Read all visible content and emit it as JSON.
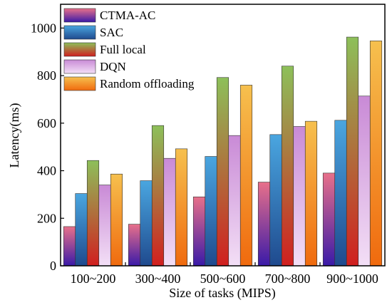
{
  "chart_data": {
    "type": "bar",
    "title": "",
    "xlabel": "Size of tasks (MIPS)",
    "ylabel": "Latency(ms)",
    "ylim": [
      0,
      1100
    ],
    "yticks": [
      0,
      200,
      400,
      600,
      800,
      1000
    ],
    "categories": [
      "100~200",
      "300~400",
      "500~600",
      "700~800",
      "900~1000"
    ],
    "legend_position": "top-left",
    "grid": false,
    "series": [
      {
        "name": "CTMA-AC",
        "values": [
          165,
          175,
          290,
          352,
          390
        ],
        "color_top": "#e8708a",
        "color_bottom": "#3a1aa8"
      },
      {
        "name": "SAC",
        "values": [
          304,
          358,
          460,
          552,
          612
        ],
        "color_top": "#4aa6e0",
        "color_bottom": "#1f4a8e"
      },
      {
        "name": "Full local",
        "values": [
          443,
          590,
          792,
          840,
          962
        ],
        "color_top": "#8dc05a",
        "color_bottom": "#d11f1f"
      },
      {
        "name": "DQN",
        "values": [
          340,
          452,
          548,
          586,
          714
        ],
        "color_top": "#c98ad6",
        "color_bottom": "#f3dff6"
      },
      {
        "name": "Random offloading",
        "values": [
          386,
          492,
          760,
          608,
          946
        ],
        "color_top": "#f6c04e",
        "color_bottom": "#f06a0e"
      }
    ]
  }
}
